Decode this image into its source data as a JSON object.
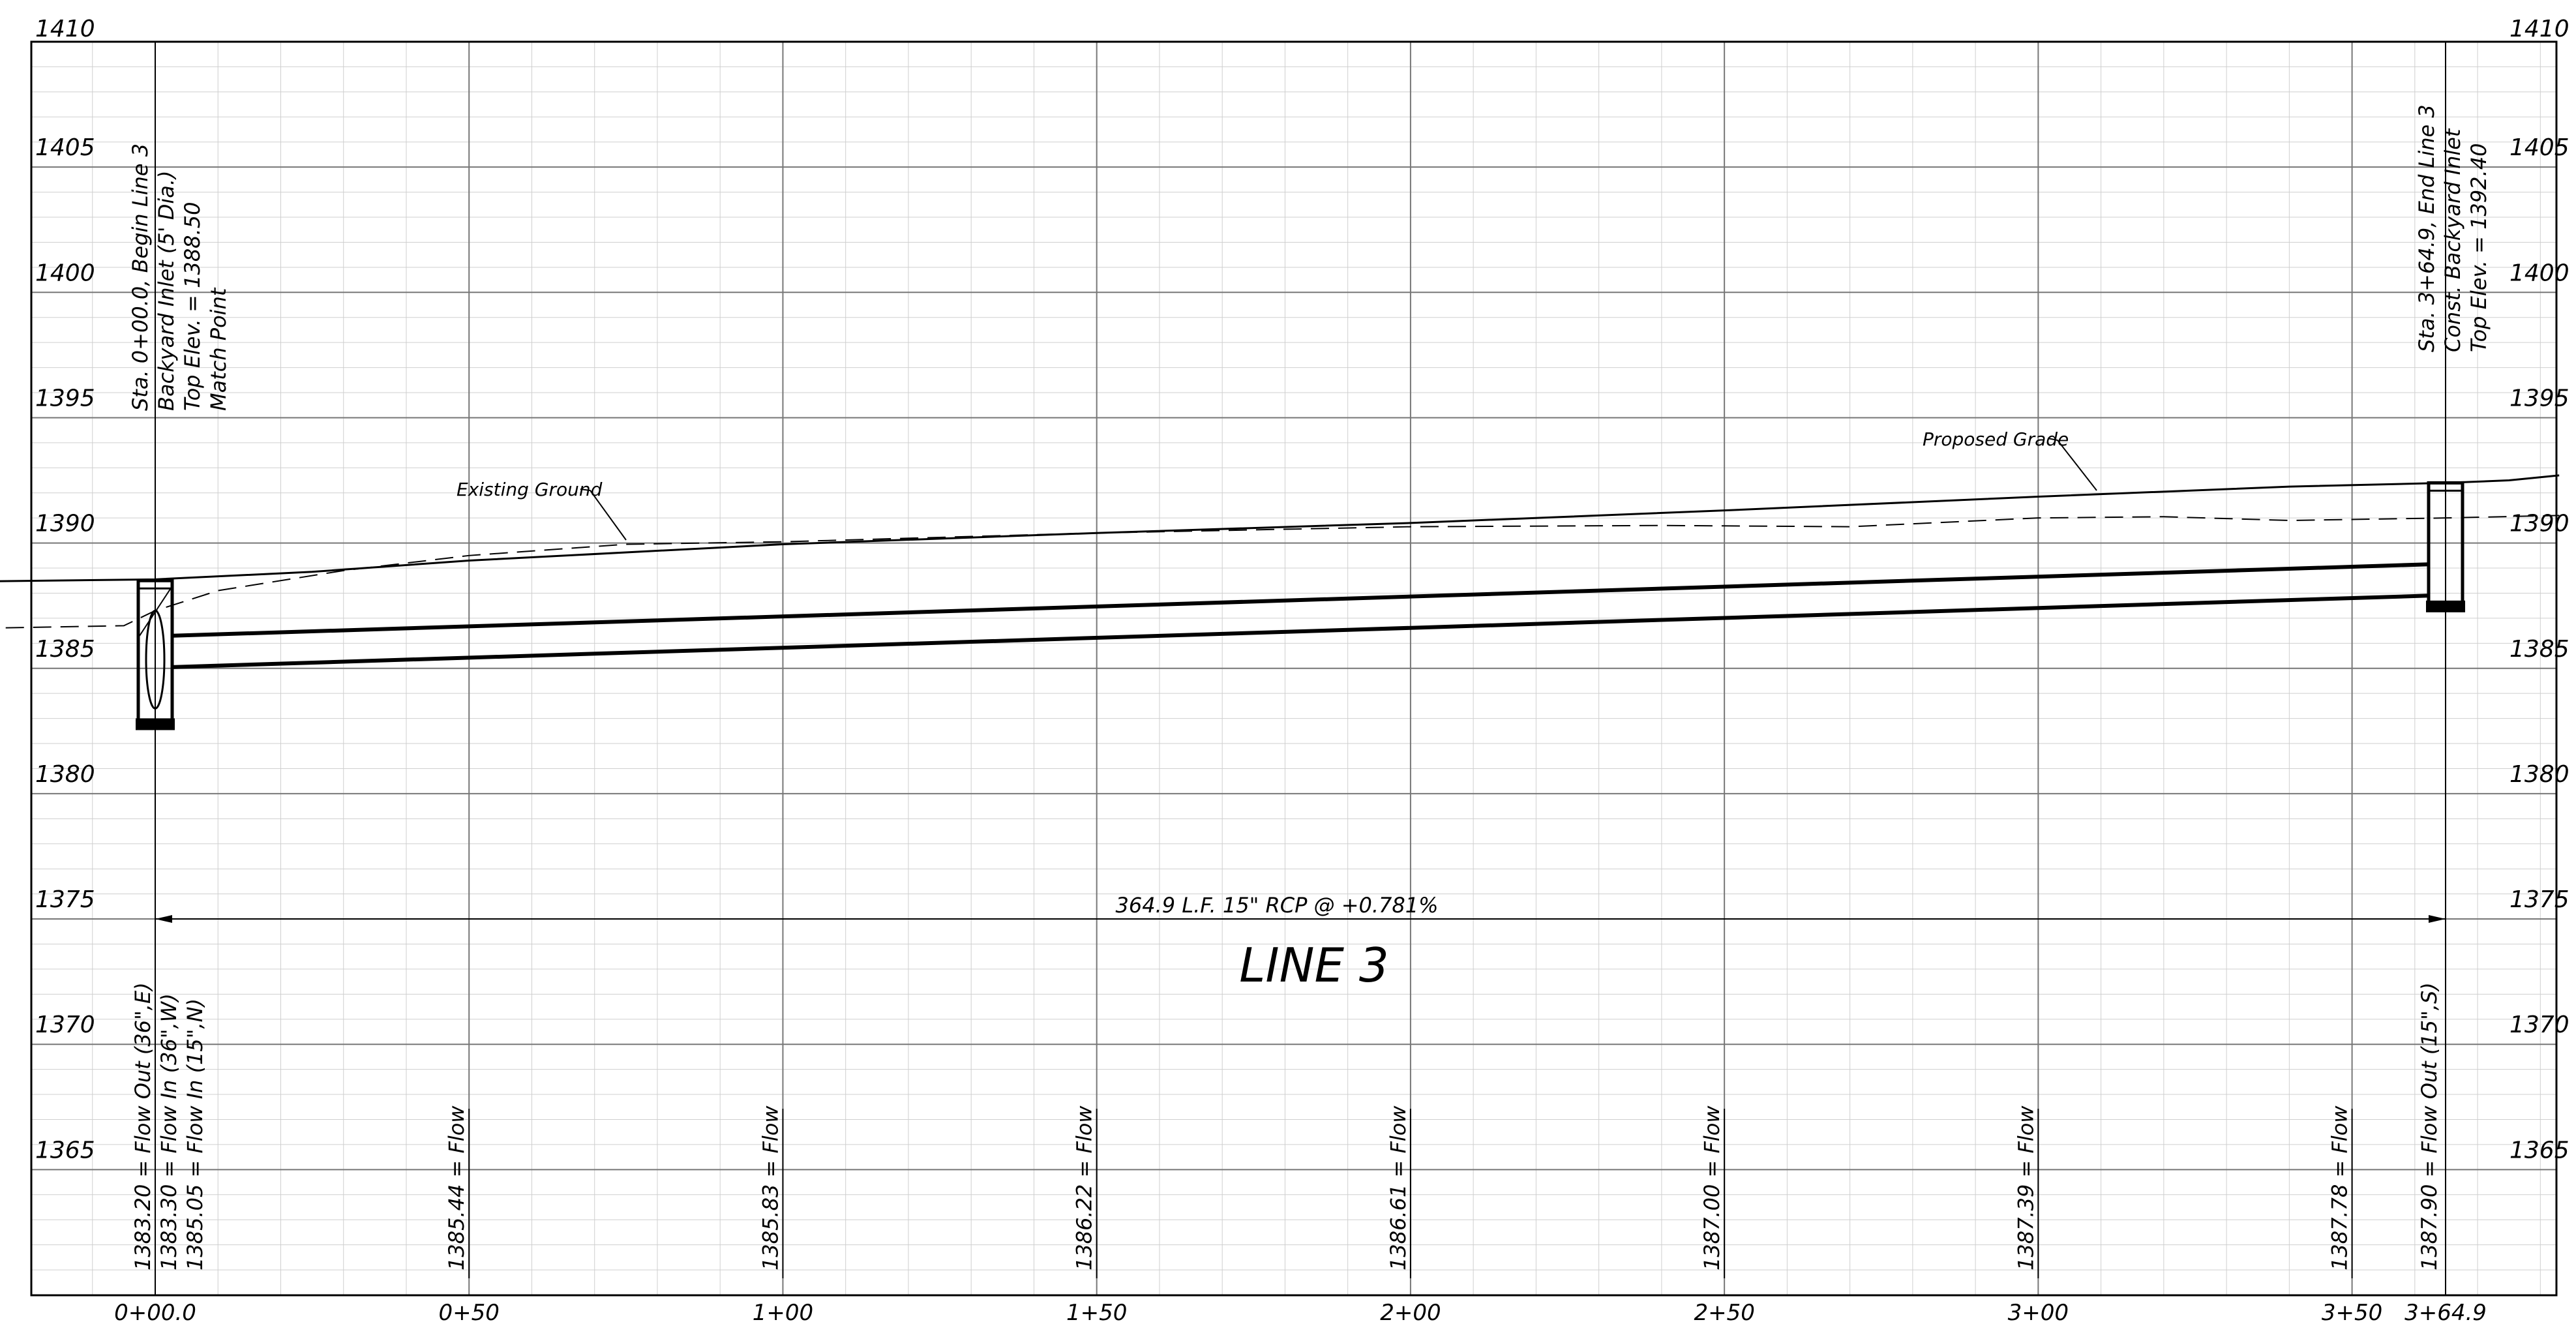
{
  "sheet": {
    "title": "LINE 3",
    "pipe_label": "364.9 L.F. 15\" RCP @ +0.781%"
  },
  "axes": {
    "elevation_min": 1360,
    "elevation_max": 1410,
    "elevation_ticks": [
      1410,
      1405,
      1400,
      1395,
      1390,
      1385,
      1380,
      1375,
      1370,
      1365
    ],
    "station_range": [
      -50,
      415
    ],
    "station_ticks": [
      {
        "sta": 0,
        "label": "0+00.0"
      },
      {
        "sta": 50,
        "label": "0+50"
      },
      {
        "sta": 100,
        "label": "1+00"
      },
      {
        "sta": 150,
        "label": "1+50"
      },
      {
        "sta": 200,
        "label": "2+00"
      },
      {
        "sta": 250,
        "label": "2+50"
      },
      {
        "sta": 300,
        "label": "3+00"
      },
      {
        "sta": 350,
        "label": "3+50"
      },
      {
        "sta": 364.9,
        "label": "3+64.9"
      }
    ]
  },
  "structures": {
    "begin": {
      "sta": 0,
      "top_elev": 1388.5,
      "bottom_elev": 1382.9,
      "notes": [
        "Sta. 0+00.0, Begin Line 3",
        "Backyard Inlet (5' Dia.)",
        "Top Elev. = 1388.50",
        "Match Point"
      ],
      "flow_notes": [
        "1383.20 = Flow Out (36\",E)",
        "1383.30 = Flow In (36\",W)",
        "1385.05 = Flow In (15\",N)"
      ]
    },
    "end": {
      "sta": 364.9,
      "top_elev": 1392.4,
      "bottom_elev": 1387.6,
      "notes": [
        "Sta. 3+64.9, End Line 3",
        "Const. Backyard Inlet",
        "Top Elev. = 1392.40"
      ],
      "flow_notes": [
        "1387.90 = Flow Out (15\",S)"
      ]
    }
  },
  "pipe": {
    "start_invert": 1385.05,
    "end_invert": 1387.9,
    "diameter_ft": 1.25
  },
  "flow_labels": [
    {
      "sta": 50,
      "text": "1385.44 = Flow"
    },
    {
      "sta": 100,
      "text": "1385.83 = Flow"
    },
    {
      "sta": 150,
      "text": "1386.22 = Flow"
    },
    {
      "sta": 200,
      "text": "1386.61 = Flow"
    },
    {
      "sta": 250,
      "text": "1387.00 = Flow"
    },
    {
      "sta": 300,
      "text": "1387.39 = Flow"
    },
    {
      "sta": 350,
      "text": "1387.78 = Flow"
    }
  ],
  "callouts": {
    "existing_ground": "Existing Ground",
    "proposed_grade": "Proposed Grade"
  },
  "proposed_grade": [
    {
      "sta": -50,
      "elev": 1388.4
    },
    {
      "sta": 0,
      "elev": 1388.55
    },
    {
      "sta": 25,
      "elev": 1388.85
    },
    {
      "sta": 50,
      "elev": 1389.3
    },
    {
      "sta": 100,
      "elev": 1389.95
    },
    {
      "sta": 150,
      "elev": 1390.4
    },
    {
      "sta": 200,
      "elev": 1390.8
    },
    {
      "sta": 250,
      "elev": 1391.3
    },
    {
      "sta": 300,
      "elev": 1391.85
    },
    {
      "sta": 340,
      "elev": 1392.25
    },
    {
      "sta": 364.9,
      "elev": 1392.4
    },
    {
      "sta": 375,
      "elev": 1392.5
    },
    {
      "sta": 383,
      "elev": 1392.7
    }
  ],
  "existing_ground": [
    {
      "sta": -50,
      "elev": 1386.5
    },
    {
      "sta": -5,
      "elev": 1386.7
    },
    {
      "sta": 0,
      "elev": 1387.3
    },
    {
      "sta": 10,
      "elev": 1388.1
    },
    {
      "sta": 30,
      "elev": 1388.9
    },
    {
      "sta": 50,
      "elev": 1389.5
    },
    {
      "sta": 75,
      "elev": 1389.95
    },
    {
      "sta": 100,
      "elev": 1390.05
    },
    {
      "sta": 150,
      "elev": 1390.4
    },
    {
      "sta": 200,
      "elev": 1390.65
    },
    {
      "sta": 240,
      "elev": 1390.7
    },
    {
      "sta": 270,
      "elev": 1390.65
    },
    {
      "sta": 300,
      "elev": 1391.0
    },
    {
      "sta": 320,
      "elev": 1391.05
    },
    {
      "sta": 340,
      "elev": 1390.9
    },
    {
      "sta": 364.9,
      "elev": 1391.0
    },
    {
      "sta": 383,
      "elev": 1391.1
    }
  ]
}
